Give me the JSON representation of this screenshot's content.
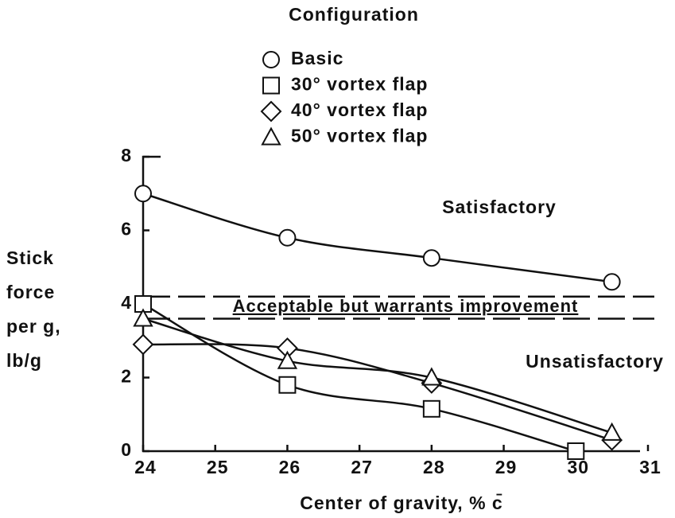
{
  "chart_data": {
    "type": "line",
    "legend_title": "Configuration",
    "xlabel": "Center of gravity, % c̄",
    "ylabel": [
      "Stick",
      "force",
      "per g,",
      "lb/g"
    ],
    "xlim": [
      24,
      31
    ],
    "xticks": [
      24,
      25,
      26,
      27,
      28,
      29,
      30,
      31
    ],
    "ylim": [
      0,
      8
    ],
    "yticks": [
      0,
      2,
      4,
      6,
      8
    ],
    "series": [
      {
        "name": "Basic",
        "marker": "circle",
        "color": "#111",
        "x": [
          24,
          26,
          28,
          30.5
        ],
        "values": [
          7.0,
          5.8,
          5.25,
          4.6
        ]
      },
      {
        "name": "30° vortex flap",
        "marker": "square",
        "color": "#111",
        "x": [
          24,
          26,
          28,
          30
        ],
        "values": [
          4.0,
          1.8,
          1.15,
          0
        ]
      },
      {
        "name": "40° vortex flap",
        "marker": "diamond",
        "color": "#111",
        "x": [
          24,
          26,
          28,
          30.5
        ],
        "values": [
          2.9,
          2.8,
          1.85,
          0.3
        ]
      },
      {
        "name": "50° vortex flap",
        "marker": "triangle",
        "color": "#111",
        "x": [
          24,
          26,
          28,
          30.5
        ],
        "values": [
          3.6,
          2.45,
          2.0,
          0.5
        ]
      }
    ],
    "reference_lines": [
      4.2,
      3.6
    ],
    "annotations": [
      "Satisfactory",
      "Acceptable but warrants improvement",
      "Unsatisfactory"
    ]
  }
}
